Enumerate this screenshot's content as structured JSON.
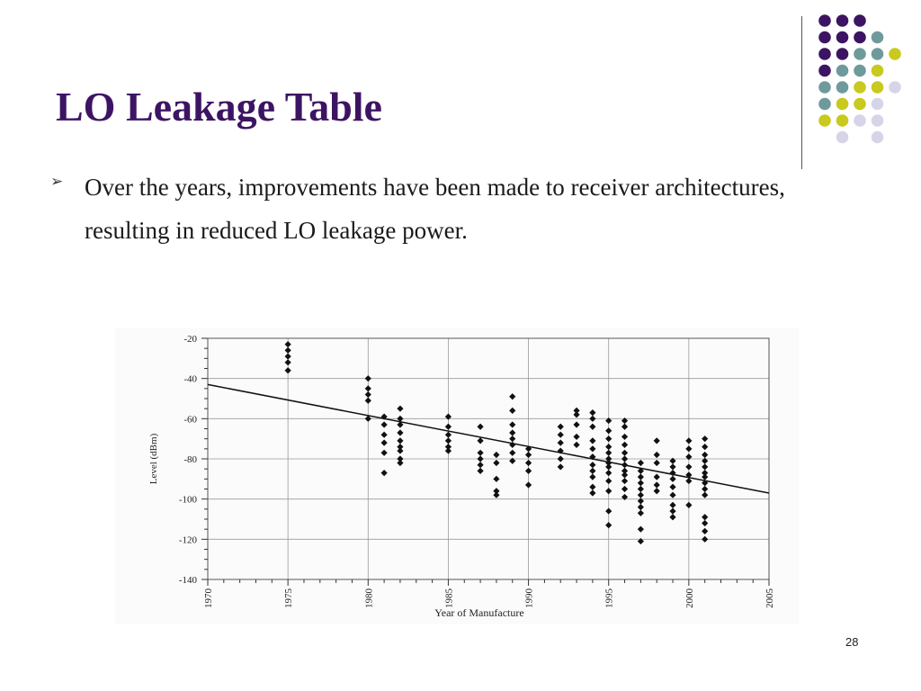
{
  "slide": {
    "title": "LO Leakage Table",
    "bullet": "Over the years, improvements have been made to receiver architectures, resulting in reduced LO leakage power.",
    "bullet_icon": "arrowhead-bullet-icon",
    "page_number": "28"
  },
  "decoration": {
    "colors": [
      "#3d1463",
      "#6f9a9c",
      "#c9c91e",
      "#d6d5e8"
    ],
    "grid": [
      [
        0,
        0,
        0,
        null,
        null
      ],
      [
        0,
        0,
        0,
        1,
        null
      ],
      [
        0,
        0,
        1,
        1,
        2
      ],
      [
        0,
        1,
        1,
        2,
        null
      ],
      [
        1,
        1,
        2,
        2,
        3
      ],
      [
        1,
        2,
        2,
        3,
        null
      ],
      [
        2,
        2,
        3,
        3,
        null
      ],
      [
        null,
        3,
        null,
        3,
        null
      ]
    ]
  },
  "chart_data": {
    "type": "scatter",
    "title": "",
    "xlabel": "Year of Manufacture",
    "ylabel": "Level (dBm)",
    "xlim": [
      1970,
      2005
    ],
    "ylim": [
      -140,
      -20
    ],
    "xticks": [
      1970,
      1975,
      1980,
      1985,
      1990,
      1995,
      2000,
      2005
    ],
    "yticks": [
      -20,
      -40,
      -60,
      -80,
      -100,
      -120,
      -140
    ],
    "grid": true,
    "marker_color": "#111111",
    "series": [
      {
        "points": [
          [
            1975,
            -23
          ],
          [
            1975,
            -26
          ],
          [
            1975,
            -29
          ],
          [
            1975,
            -32
          ],
          [
            1975,
            -36
          ],
          [
            1980,
            -40
          ],
          [
            1980,
            -45
          ],
          [
            1980,
            -48
          ],
          [
            1980,
            -51
          ],
          [
            1980,
            -60
          ],
          [
            1981,
            -59
          ],
          [
            1981,
            -63
          ],
          [
            1981,
            -68
          ],
          [
            1981,
            -72
          ],
          [
            1981,
            -77
          ],
          [
            1981,
            -87
          ],
          [
            1982,
            -55
          ],
          [
            1982,
            -60
          ],
          [
            1982,
            -63
          ],
          [
            1982,
            -67
          ],
          [
            1982,
            -71
          ],
          [
            1982,
            -74
          ],
          [
            1982,
            -76
          ],
          [
            1982,
            -80
          ],
          [
            1982,
            -82
          ],
          [
            1985,
            -59
          ],
          [
            1985,
            -64
          ],
          [
            1985,
            -68
          ],
          [
            1985,
            -71
          ],
          [
            1985,
            -74
          ],
          [
            1985,
            -76
          ],
          [
            1987,
            -64
          ],
          [
            1987,
            -71
          ],
          [
            1987,
            -77
          ],
          [
            1987,
            -80
          ],
          [
            1987,
            -83
          ],
          [
            1987,
            -86
          ],
          [
            1988,
            -78
          ],
          [
            1988,
            -82
          ],
          [
            1988,
            -90
          ],
          [
            1988,
            -96
          ],
          [
            1988,
            -98
          ],
          [
            1989,
            -49
          ],
          [
            1989,
            -56
          ],
          [
            1989,
            -63
          ],
          [
            1989,
            -67
          ],
          [
            1989,
            -70
          ],
          [
            1989,
            -73
          ],
          [
            1989,
            -77
          ],
          [
            1989,
            -81
          ],
          [
            1990,
            -75
          ],
          [
            1990,
            -78
          ],
          [
            1990,
            -82
          ],
          [
            1990,
            -86
          ],
          [
            1990,
            -93
          ],
          [
            1992,
            -64
          ],
          [
            1992,
            -68
          ],
          [
            1992,
            -72
          ],
          [
            1992,
            -76
          ],
          [
            1992,
            -80
          ],
          [
            1992,
            -84
          ],
          [
            1993,
            -56
          ],
          [
            1993,
            -58
          ],
          [
            1993,
            -63
          ],
          [
            1993,
            -69
          ],
          [
            1993,
            -73
          ],
          [
            1994,
            -57
          ],
          [
            1994,
            -60
          ],
          [
            1994,
            -64
          ],
          [
            1994,
            -71
          ],
          [
            1994,
            -75
          ],
          [
            1994,
            -79
          ],
          [
            1994,
            -83
          ],
          [
            1994,
            -86
          ],
          [
            1994,
            -89
          ],
          [
            1994,
            -94
          ],
          [
            1994,
            -97
          ],
          [
            1995,
            -61
          ],
          [
            1995,
            -66
          ],
          [
            1995,
            -70
          ],
          [
            1995,
            -74
          ],
          [
            1995,
            -77
          ],
          [
            1995,
            -80
          ],
          [
            1995,
            -82
          ],
          [
            1995,
            -84
          ],
          [
            1995,
            -87
          ],
          [
            1995,
            -91
          ],
          [
            1995,
            -96
          ],
          [
            1995,
            -106
          ],
          [
            1995,
            -113
          ],
          [
            1996,
            -61
          ],
          [
            1996,
            -64
          ],
          [
            1996,
            -69
          ],
          [
            1996,
            -73
          ],
          [
            1996,
            -77
          ],
          [
            1996,
            -80
          ],
          [
            1996,
            -83
          ],
          [
            1996,
            -86
          ],
          [
            1996,
            -88
          ],
          [
            1996,
            -91
          ],
          [
            1996,
            -95
          ],
          [
            1996,
            -99
          ],
          [
            1997,
            -82
          ],
          [
            1997,
            -86
          ],
          [
            1997,
            -89
          ],
          [
            1997,
            -92
          ],
          [
            1997,
            -95
          ],
          [
            1997,
            -98
          ],
          [
            1997,
            -101
          ],
          [
            1997,
            -104
          ],
          [
            1997,
            -107
          ],
          [
            1997,
            -115
          ],
          [
            1997,
            -121
          ],
          [
            1998,
            -71
          ],
          [
            1998,
            -78
          ],
          [
            1998,
            -82
          ],
          [
            1998,
            -89
          ],
          [
            1998,
            -93
          ],
          [
            1998,
            -96
          ],
          [
            1999,
            -81
          ],
          [
            1999,
            -84
          ],
          [
            1999,
            -87
          ],
          [
            1999,
            -90
          ],
          [
            1999,
            -94
          ],
          [
            1999,
            -98
          ],
          [
            1999,
            -103
          ],
          [
            1999,
            -106
          ],
          [
            1999,
            -109
          ],
          [
            2000,
            -71
          ],
          [
            2000,
            -75
          ],
          [
            2000,
            -79
          ],
          [
            2000,
            -84
          ],
          [
            2000,
            -88
          ],
          [
            2000,
            -91
          ],
          [
            2000,
            -103
          ],
          [
            2001,
            -70
          ],
          [
            2001,
            -74
          ],
          [
            2001,
            -78
          ],
          [
            2001,
            -81
          ],
          [
            2001,
            -84
          ],
          [
            2001,
            -87
          ],
          [
            2001,
            -89
          ],
          [
            2001,
            -92
          ],
          [
            2001,
            -95
          ],
          [
            2001,
            -98
          ],
          [
            2001,
            -109
          ],
          [
            2001,
            -112
          ],
          [
            2001,
            -116
          ],
          [
            2001,
            -120
          ]
        ]
      }
    ],
    "trendline": {
      "x": [
        1970,
        2005
      ],
      "y": [
        -43,
        -97
      ]
    }
  }
}
